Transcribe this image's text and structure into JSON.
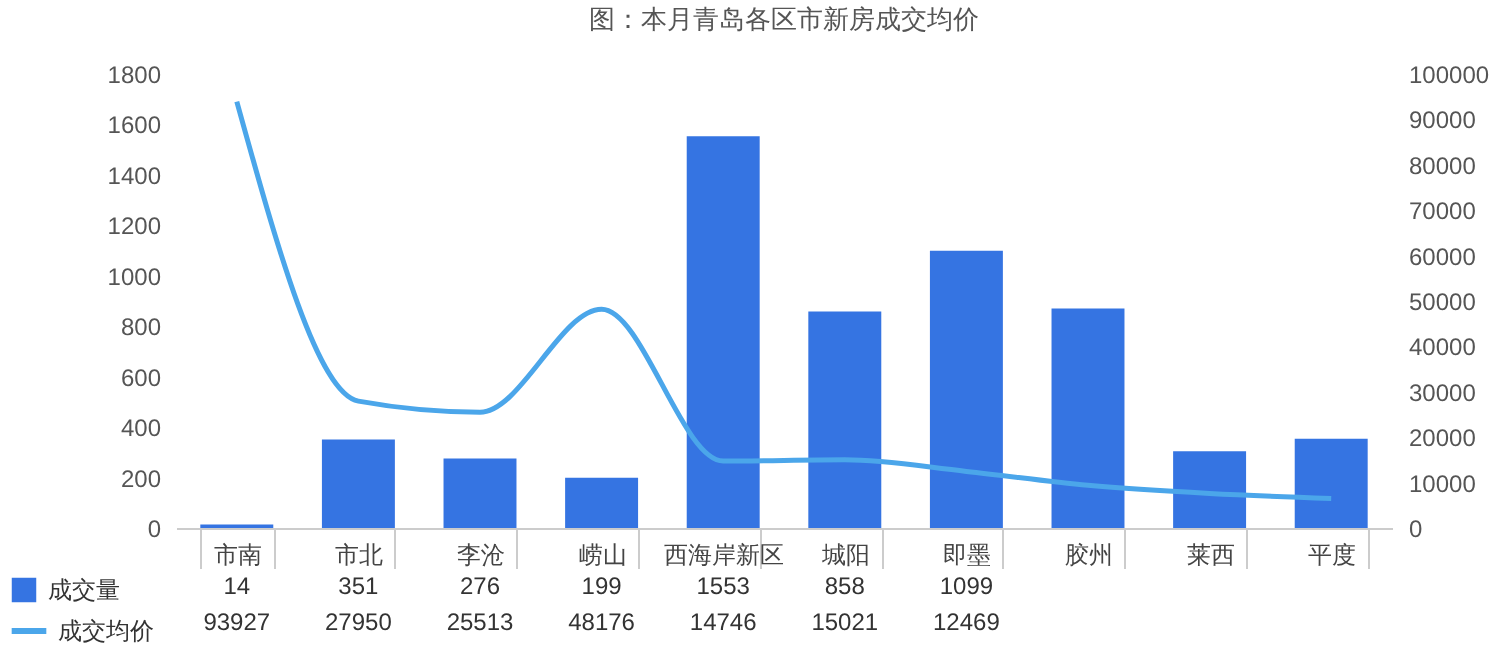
{
  "chart_data": {
    "type": "bar",
    "title": "图：本月青岛各区市新房成交均价",
    "categories": [
      "市南",
      "市北",
      "李沧",
      "崂山",
      "西海岸新区",
      "城阳",
      "即墨",
      "胶州",
      "莱西",
      "平度"
    ],
    "series": [
      {
        "name": "成交量",
        "color": "#3574e2",
        "values": [
          14,
          351,
          276,
          199,
          1553,
          858,
          1099,
          870,
          304,
          354
        ],
        "value_labels": [
          "14",
          "351",
          "276",
          "199",
          "1553",
          "858",
          "1099",
          null,
          null,
          null
        ]
      },
      {
        "name": "成交均价",
        "type": "line",
        "axis": "y2",
        "color": "#4ba6ea",
        "values": [
          93927,
          27950,
          25513,
          48176,
          14746,
          15021,
          12469,
          9400,
          7600,
          6500
        ],
        "value_labels": [
          "93927",
          "27950",
          "25513",
          "48176",
          "14746",
          "15021",
          "12469",
          null,
          null,
          null
        ]
      }
    ],
    "ylim": [
      0,
      1800
    ],
    "yticks": [
      0,
      200,
      400,
      600,
      800,
      1000,
      1200,
      1400,
      1600,
      1800
    ],
    "y2lim": [
      0,
      100000
    ],
    "y2ticks": [
      0,
      10000,
      20000,
      30000,
      40000,
      50000,
      60000,
      70000,
      80000,
      90000,
      100000
    ],
    "grid": false,
    "legend": "bottom left",
    "marker": "none",
    "line_style": "solid"
  }
}
